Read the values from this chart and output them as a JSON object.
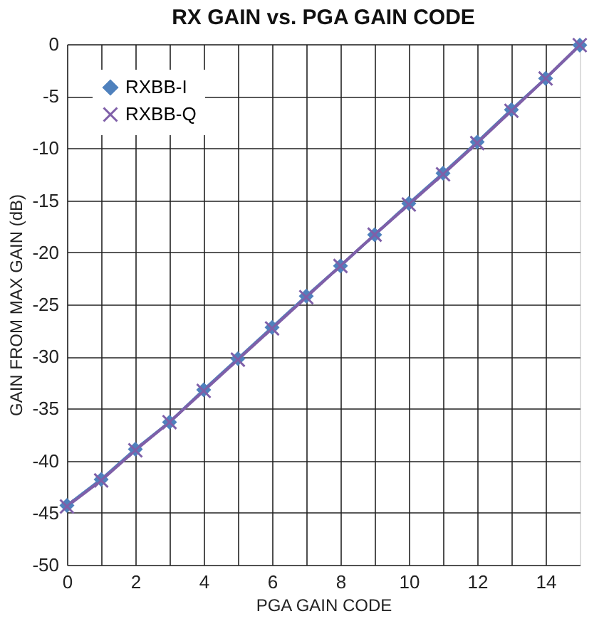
{
  "chart_data": {
    "type": "line",
    "title": "RX GAIN vs. PGA GAIN CODE",
    "xlabel": "PGA GAIN CODE",
    "ylabel": "GAIN FROM MAX GAIN (dB)",
    "x": [
      0,
      1,
      2,
      3,
      4,
      5,
      6,
      7,
      8,
      9,
      10,
      11,
      12,
      13,
      14,
      15
    ],
    "series": [
      {
        "name": "RXBB-I",
        "color": "#4f81bd",
        "marker": "diamond",
        "values": [
          -44.3,
          -41.8,
          -38.9,
          -36.3,
          -33.2,
          -30.2,
          -27.2,
          -24.2,
          -21.3,
          -18.3,
          -15.3,
          -12.4,
          -9.4,
          -6.3,
          -3.3,
          -0.1
        ]
      },
      {
        "name": "RXBB-Q",
        "color": "#7f5fa8",
        "marker": "cross",
        "values": [
          -44.4,
          -41.9,
          -39.0,
          -36.3,
          -33.3,
          -30.3,
          -27.3,
          -24.3,
          -21.3,
          -18.3,
          -15.4,
          -12.5,
          -9.5,
          -6.4,
          -3.3,
          -0.1
        ]
      }
    ],
    "xlim": [
      0,
      15
    ],
    "xticks": [
      0,
      {
        "value": 1,
        "label": null
      },
      2,
      {
        "value": 3,
        "label": null
      },
      4,
      {
        "value": 5,
        "label": null
      },
      6,
      {
        "value": 7,
        "label": null
      },
      8,
      {
        "value": 9,
        "label": null
      },
      10,
      {
        "value": 11,
        "label": null
      },
      12,
      {
        "value": 13,
        "label": null
      },
      14
    ],
    "ylim": [
      -50,
      0
    ],
    "yticks": [
      -50,
      -45,
      -40,
      -35,
      -30,
      -25,
      -20,
      -15,
      -10,
      -5,
      0
    ],
    "grid": true,
    "legend": "top left"
  }
}
